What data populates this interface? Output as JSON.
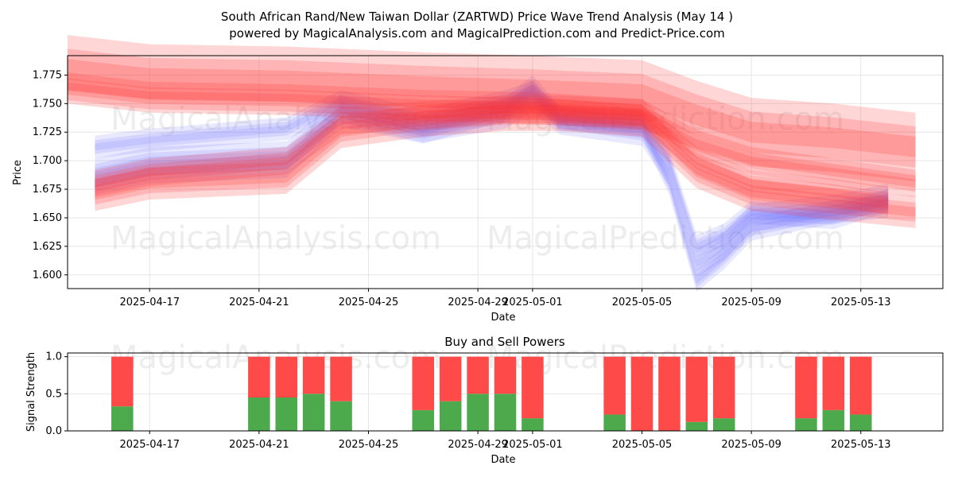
{
  "title_line1": "South African Rand/New Taiwan Dollar (ZARTWD) Price Wave Trend Analysis (May 14 )",
  "title_line2": "powered by MagicalAnalysis.com and MagicalPrediction.com and Predict-Price.com",
  "watermarks": [
    "MagicalAnalysis.com",
    "MagicalPrediction.com"
  ],
  "colors": {
    "buy": "#4caa4c",
    "sell": "#ff4a4a",
    "blue_band": "#6f6fff",
    "red_band": "#ff3030",
    "grid": "#e6e6e6"
  },
  "chart_data": [
    {
      "type": "area",
      "xlabel": "Date",
      "ylabel": "Price",
      "x_tick_labels": [
        "2025-04-17",
        "2025-04-21",
        "2025-04-25",
        "2025-04-29",
        "2025-05-01",
        "2025-05-05",
        "2025-05-09",
        "2025-05-13"
      ],
      "x_ticks": [
        "2025-04-17",
        "2025-04-21",
        "2025-04-25",
        "2025-04-29",
        "2025-05-01",
        "2025-05-05",
        "2025-05-09",
        "2025-05-13"
      ],
      "y_ticks": [
        1.6,
        1.625,
        1.65,
        1.675,
        1.7,
        1.725,
        1.75,
        1.775
      ],
      "y_tick_labels": [
        "1.600",
        "1.625",
        "1.650",
        "1.675",
        "1.700",
        "1.725",
        "1.750",
        "1.775"
      ],
      "xlim": [
        "2025-04-14",
        "2025-05-16"
      ],
      "ylim": [
        1.588,
        1.792
      ],
      "grid": true,
      "series": [
        {
          "color": "blue",
          "x": [
            "2025-04-15",
            "2025-04-17",
            "2025-04-22",
            "2025-04-24",
            "2025-04-27",
            "2025-04-30",
            "2025-05-01",
            "2025-05-02",
            "2025-05-05",
            "2025-05-06",
            "2025-05-07",
            "2025-05-08",
            "2025-05-09",
            "2025-05-12",
            "2025-05-14"
          ],
          "y": [
            1.712,
            1.718,
            1.728,
            1.752,
            1.735,
            1.752,
            1.76,
            1.736,
            1.735,
            1.7,
            1.625,
            1.635,
            1.655,
            1.65,
            1.665
          ],
          "width": 0.01
        },
        {
          "color": "blue",
          "x": [
            "2025-04-15",
            "2025-04-17",
            "2025-04-22",
            "2025-04-24",
            "2025-04-27",
            "2025-04-30",
            "2025-05-01",
            "2025-05-02",
            "2025-05-05",
            "2025-05-06",
            "2025-05-07",
            "2025-05-08",
            "2025-05-09",
            "2025-05-12",
            "2025-05-14"
          ],
          "y": [
            1.69,
            1.7,
            1.705,
            1.745,
            1.728,
            1.74,
            1.755,
            1.735,
            1.725,
            1.69,
            1.61,
            1.625,
            1.65,
            1.658,
            1.668
          ],
          "width": 0.012
        },
        {
          "color": "blue",
          "x": [
            "2025-04-15",
            "2025-04-17",
            "2025-04-22",
            "2025-04-24",
            "2025-04-27",
            "2025-04-30",
            "2025-05-01",
            "2025-05-02",
            "2025-05-05",
            "2025-05-06",
            "2025-05-07",
            "2025-05-08",
            "2025-05-09",
            "2025-05-12",
            "2025-05-14"
          ],
          "y": [
            1.68,
            1.69,
            1.695,
            1.74,
            1.725,
            1.745,
            1.765,
            1.738,
            1.73,
            1.68,
            1.595,
            1.615,
            1.64,
            1.655,
            1.66
          ],
          "width": 0.01
        },
        {
          "color": "red",
          "x": [
            "2025-04-14",
            "2025-04-17",
            "2025-04-22",
            "2025-04-27",
            "2025-05-01",
            "2025-05-05",
            "2025-05-07",
            "2025-05-09",
            "2025-05-12",
            "2025-05-15"
          ],
          "y": [
            1.78,
            1.772,
            1.77,
            1.765,
            1.762,
            1.758,
            1.74,
            1.725,
            1.72,
            1.712
          ],
          "width": 0.03
        },
        {
          "color": "red",
          "x": [
            "2025-04-14",
            "2025-04-17",
            "2025-04-22",
            "2025-04-27",
            "2025-05-01",
            "2025-05-05",
            "2025-05-07",
            "2025-05-09",
            "2025-05-12",
            "2025-05-15"
          ],
          "y": [
            1.765,
            1.757,
            1.755,
            1.75,
            1.748,
            1.742,
            1.715,
            1.7,
            1.69,
            1.68
          ],
          "width": 0.012
        },
        {
          "color": "red",
          "x": [
            "2025-04-15",
            "2025-04-17",
            "2025-04-22",
            "2025-04-24",
            "2025-04-27",
            "2025-04-30",
            "2025-05-02",
            "2025-05-05",
            "2025-05-07",
            "2025-05-09",
            "2025-05-12",
            "2025-05-14"
          ],
          "y": [
            1.68,
            1.69,
            1.7,
            1.735,
            1.74,
            1.745,
            1.745,
            1.742,
            1.7,
            1.68,
            1.672,
            1.665
          ],
          "width": 0.012
        },
        {
          "color": "red",
          "x": [
            "2025-04-15",
            "2025-04-17",
            "2025-04-22",
            "2025-04-24",
            "2025-04-27",
            "2025-04-30",
            "2025-05-02",
            "2025-05-05",
            "2025-05-07",
            "2025-05-09",
            "2025-05-12",
            "2025-05-15"
          ],
          "y": [
            1.67,
            1.68,
            1.685,
            1.725,
            1.735,
            1.74,
            1.74,
            1.735,
            1.69,
            1.67,
            1.662,
            1.655
          ],
          "width": 0.014
        }
      ]
    },
    {
      "type": "bar",
      "title": "Buy and Sell Powers",
      "xlabel": "Date",
      "ylabel": "Signal Strength",
      "x_tick_labels": [
        "2025-04-17",
        "2025-04-21",
        "2025-04-25",
        "2025-04-29",
        "2025-05-01",
        "2025-05-05",
        "2025-05-09",
        "2025-05-13"
      ],
      "x_ticks": [
        "2025-04-17",
        "2025-04-21",
        "2025-04-25",
        "2025-04-29",
        "2025-05-01",
        "2025-05-05",
        "2025-05-09",
        "2025-05-13"
      ],
      "y_ticks": [
        0.0,
        0.5,
        1.0
      ],
      "y_tick_labels": [
        "0.0",
        "0.5",
        "1.0"
      ],
      "xlim": [
        "2025-04-14",
        "2025-05-16"
      ],
      "ylim": [
        0,
        1.05
      ],
      "dates": [
        "2025-04-16",
        "2025-04-21",
        "2025-04-22",
        "2025-04-23",
        "2025-04-24",
        "2025-04-27",
        "2025-04-28",
        "2025-04-29",
        "2025-04-30",
        "2025-05-01",
        "2025-05-04",
        "2025-05-05",
        "2025-05-06",
        "2025-05-07",
        "2025-05-08",
        "2025-05-11",
        "2025-05-12",
        "2025-05-13"
      ],
      "series": [
        {
          "name": "Buy",
          "values": [
            0.33,
            0.45,
            0.45,
            0.5,
            0.4,
            0.28,
            0.4,
            0.5,
            0.5,
            0.17,
            0.22,
            0.0,
            0.0,
            0.12,
            0.17,
            0.17,
            0.28,
            0.22
          ]
        },
        {
          "name": "Sell",
          "values": [
            0.67,
            0.55,
            0.55,
            0.5,
            0.6,
            0.72,
            0.6,
            0.5,
            0.5,
            0.83,
            0.78,
            1.0,
            1.0,
            0.88,
            0.83,
            0.83,
            0.72,
            0.78
          ]
        }
      ]
    }
  ]
}
